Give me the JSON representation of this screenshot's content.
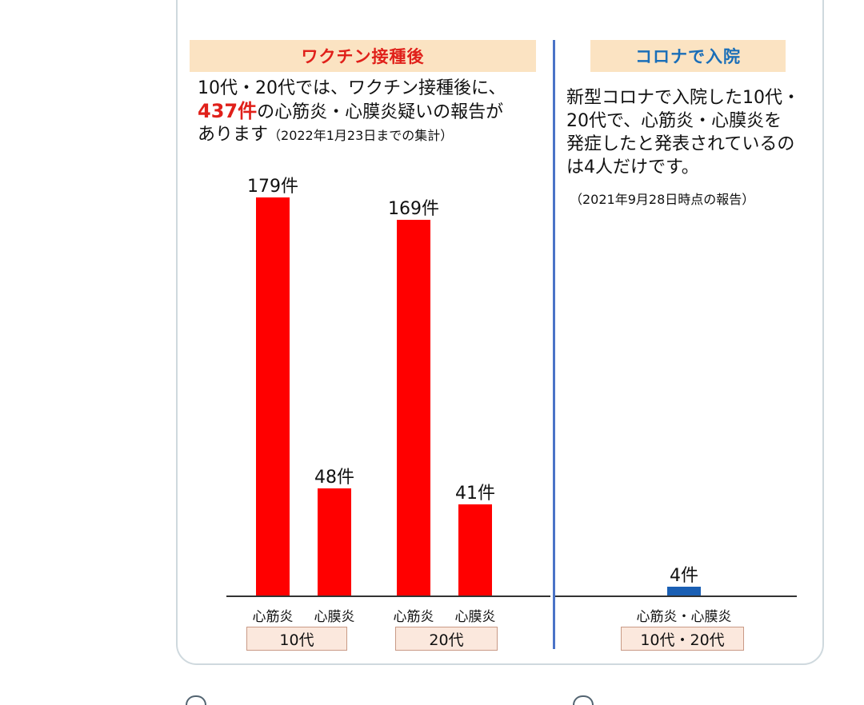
{
  "left_panel": {
    "header": "ワクチン接種後",
    "line1": "10代・20代では、ワクチン接種後に、",
    "highlight": "437件",
    "line2_rest": "の心筋炎・心膜炎疑いの報告が",
    "line3": "あります",
    "note": "（2022年1月23日までの集計）"
  },
  "right_panel": {
    "header": "コロナで入院",
    "lines": [
      "新型コロナで入院した10代・",
      "20代で、心筋炎・心膜炎を",
      "発症したと発表されているの",
      "は4人だけです。"
    ],
    "note": "（2021年9月28日時点の報告）"
  },
  "colors": {
    "vaccine_bar": "#ff0000",
    "covid_bar": "#1a5fb4",
    "left_header_text": "#e0201a",
    "right_header_text": "#1a6eb8",
    "header_bg": "#fbe3c2"
  },
  "chart_data": [
    {
      "type": "bar",
      "categories": [
        "心筋炎",
        "心膜炎",
        "心筋炎",
        "心膜炎"
      ],
      "groups": [
        "10代",
        "10代",
        "20代",
        "20代"
      ],
      "values": [
        179,
        48,
        169,
        41
      ],
      "value_labels": [
        "179件",
        "48件",
        "169件",
        "41件"
      ],
      "title": "ワクチン接種後",
      "ylim": [
        0,
        190
      ],
      "grid": false
    },
    {
      "type": "bar",
      "categories": [
        "心筋炎・心膜炎"
      ],
      "groups": [
        "10代・20代"
      ],
      "values": [
        4
      ],
      "value_labels": [
        "4件"
      ],
      "title": "コロナで入院",
      "ylim": [
        0,
        190
      ],
      "grid": false
    }
  ]
}
